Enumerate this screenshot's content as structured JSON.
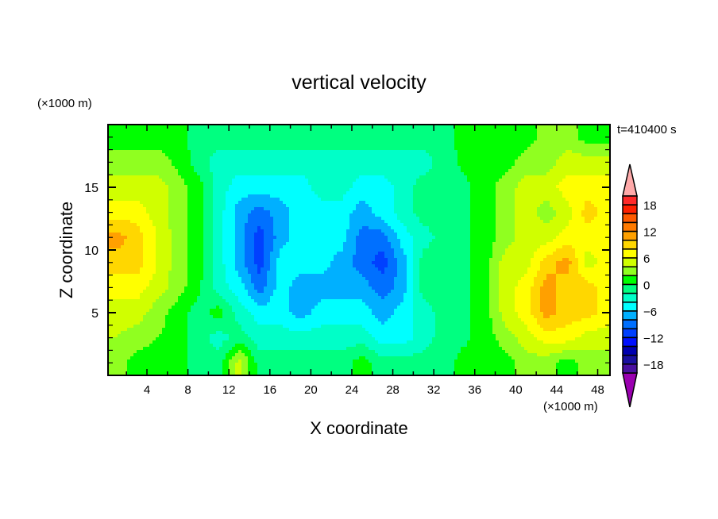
{
  "chart_data": {
    "type": "heatmap",
    "title": "vertical velocity",
    "xlabel": "X coordinate",
    "ylabel": "Z coordinate",
    "x_unit": "(×1000 m)",
    "y_unit": "(×1000 m)",
    "time_label": "t=410400 s",
    "xlim": [
      0.2,
      49.2
    ],
    "ylim": [
      0,
      20
    ],
    "x_ticks": [
      4,
      8,
      12,
      16,
      20,
      24,
      28,
      32,
      36,
      40,
      44,
      48
    ],
    "x_tick_labels": [
      "4",
      "8",
      "12",
      "16",
      "20",
      "24",
      "28",
      "32",
      "36",
      "40",
      "44",
      "48"
    ],
    "y_ticks": [
      5,
      10,
      15
    ],
    "y_tick_labels": [
      "5",
      "10",
      "15"
    ],
    "grid": false,
    "x": [
      1,
      3,
      5,
      7,
      9,
      11,
      13,
      15,
      17,
      19,
      21,
      23,
      25,
      27,
      29,
      31,
      33,
      35,
      37,
      39,
      41,
      43,
      45,
      47,
      49
    ],
    "z": [
      19,
      17,
      15,
      13,
      11,
      9,
      7,
      5,
      3,
      1
    ],
    "values": [
      [
        1,
        1,
        1,
        1,
        -1,
        -1,
        -1,
        -1,
        -1,
        -1,
        -1,
        -1,
        -1,
        -1,
        -1,
        -1,
        -1,
        1,
        1,
        1,
        1,
        3,
        3,
        1,
        1
      ],
      [
        3,
        3,
        3,
        1.5,
        -1,
        -3,
        -3,
        -3,
        -3,
        -3,
        -3,
        -3,
        -3,
        -3,
        -3,
        -3,
        -1,
        0.5,
        1,
        1,
        3,
        3,
        5,
        5,
        5
      ],
      [
        5,
        5,
        5,
        3,
        1,
        -3,
        -5,
        -5,
        -5,
        -5,
        -3,
        -3,
        -5,
        -5,
        -3,
        -1,
        -1,
        -0.5,
        1,
        3,
        5,
        5,
        7,
        7,
        7
      ],
      [
        7,
        7,
        5,
        3,
        1,
        -3,
        -7,
        -9,
        -7,
        -5,
        -5,
        -5,
        -7,
        -5,
        -3,
        -1,
        -1,
        -0.5,
        1,
        3,
        5,
        3,
        5,
        9,
        7
      ],
      [
        11,
        9,
        6,
        3,
        1,
        -3,
        -7,
        -11,
        -7,
        -5,
        -5,
        -5,
        -9,
        -9,
        -5,
        -3,
        -1,
        -0.5,
        1,
        3,
        5,
        5,
        7,
        7,
        7
      ],
      [
        9,
        9,
        6,
        3,
        1,
        -3,
        -7,
        -11,
        -5,
        -5,
        -5,
        -7,
        -9,
        -11,
        -7,
        -1,
        -1,
        -0.5,
        1,
        5,
        5,
        9,
        11,
        5,
        7
      ],
      [
        7,
        7,
        5,
        3,
        0.5,
        -3,
        -5,
        -9,
        -5,
        -7,
        -7,
        -7,
        -7,
        -9,
        -7,
        -1,
        -1,
        -0.5,
        1,
        5,
        7,
        11,
        9,
        9,
        7
      ],
      [
        5,
        5,
        3,
        1,
        -1,
        1,
        -3,
        -5,
        -5,
        -7,
        -5,
        -5,
        -5,
        -7,
        -5,
        -3,
        -1,
        -0.5,
        1,
        5,
        7,
        11,
        9,
        9,
        7
      ],
      [
        4,
        3,
        2,
        1,
        -1,
        -3,
        -1,
        -3,
        -3,
        -3,
        -3,
        -3,
        -3,
        -5,
        -5,
        -3,
        -1,
        -0.5,
        1,
        3,
        5,
        7,
        7,
        5,
        5
      ],
      [
        3,
        1,
        1,
        0.5,
        -0.5,
        -1,
        5,
        -1,
        -1,
        -1,
        -1,
        -1,
        1,
        -1,
        -1,
        -1,
        -1,
        1,
        1,
        1,
        3,
        3,
        1,
        3,
        3
      ]
    ],
    "colorbar": {
      "levels": [
        20,
        18,
        16,
        14,
        12,
        10,
        8,
        6,
        4,
        2,
        0,
        -2,
        -4,
        -6,
        -8,
        -10,
        -12,
        -14,
        -16,
        -18,
        -20
      ],
      "labels": [
        "18",
        "12",
        "6",
        "0",
        "−6",
        "−12",
        "−18"
      ],
      "label_values": [
        18,
        12,
        6,
        0,
        -6,
        -12,
        -18
      ],
      "colors": [
        "#ff2a2a",
        "#ff2000",
        "#ff5a00",
        "#ff7a00",
        "#ffa000",
        "#ffd700",
        "#ffff00",
        "#d0ff00",
        "#90ff20",
        "#00ff00",
        "#00ff80",
        "#00ffc8",
        "#00ffff",
        "#00b0ff",
        "#0070ff",
        "#0040ff",
        "#0010ff",
        "#0000b0",
        "#1a10a0",
        "#4a10a0"
      ],
      "over_color": "#ffaaaa",
      "under_color": "#9a00b0"
    }
  }
}
